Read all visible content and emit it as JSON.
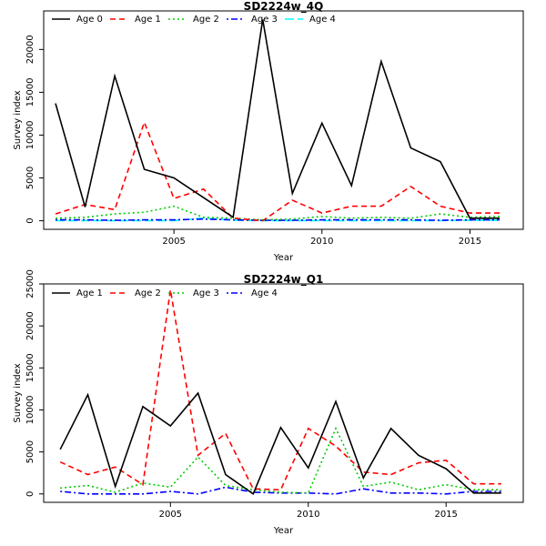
{
  "chart_data": [
    {
      "type": "line",
      "title": "SD2224w_4Q",
      "xlabel": "Year",
      "ylabel": "Survey index",
      "xlim": [
        2000.6,
        2016.8
      ],
      "ylim": [
        -1000,
        24500
      ],
      "x_ticks": [
        2005,
        2010,
        2015
      ],
      "y_ticks": [
        0,
        5000,
        10000,
        15000,
        20000
      ],
      "grid": false,
      "legend": "top",
      "x": [
        2001,
        2002,
        2003,
        2004,
        2005,
        2006,
        2007,
        2008,
        2009,
        2010,
        2011,
        2012,
        2013,
        2014,
        2015,
        2016
      ],
      "series": [
        {
          "name": "Age 0",
          "color": "#000000",
          "dash": "solid",
          "values": [
            13700,
            1600,
            16900,
            6000,
            5000,
            2700,
            400,
            23500,
            3200,
            11400,
            4100,
            18600,
            8500,
            6900,
            300,
            300
          ]
        },
        {
          "name": "Age 1",
          "color": "#ff0000",
          "dash": "dashed",
          "values": [
            800,
            1900,
            1300,
            11500,
            2600,
            3700,
            300,
            0,
            2400,
            900,
            1700,
            1700,
            4000,
            1700,
            900,
            900
          ]
        },
        {
          "name": "Age 2",
          "color": "#00cd00",
          "dash": "dotted",
          "values": [
            300,
            400,
            800,
            1000,
            1700,
            400,
            300,
            100,
            200,
            500,
            300,
            400,
            300,
            800,
            400,
            500
          ]
        },
        {
          "name": "Age 3",
          "color": "#0000ff",
          "dash": "dotdash",
          "values": [
            100,
            100,
            50,
            100,
            100,
            200,
            100,
            50,
            50,
            100,
            100,
            100,
            100,
            50,
            100,
            100
          ]
        },
        {
          "name": "Age 4",
          "color": "#00ffff",
          "dash": "longdash",
          "values": [
            20,
            20,
            20,
            20,
            20,
            300,
            50,
            20,
            20,
            20,
            20,
            20,
            20,
            20,
            50,
            50
          ]
        }
      ]
    },
    {
      "type": "line",
      "title": "SD2224w_Q1",
      "xlabel": "Year",
      "ylabel": "Survey index",
      "xlim": [
        2000.4,
        2017.8
      ],
      "ylim": [
        -1000,
        25000
      ],
      "x_ticks": [
        2005,
        2010,
        2015
      ],
      "y_ticks": [
        0,
        5000,
        10000,
        15000,
        20000,
        25000
      ],
      "grid": false,
      "legend": "top",
      "x": [
        2001,
        2002,
        2003,
        2004,
        2005,
        2006,
        2007,
        2008,
        2009,
        2010,
        2011,
        2012,
        2013,
        2014,
        2015,
        2016,
        2017
      ],
      "series": [
        {
          "name": "Age 1",
          "color": "#000000",
          "dash": "solid",
          "values": [
            5300,
            11800,
            900,
            10400,
            8100,
            12000,
            2300,
            0,
            7900,
            3100,
            11000,
            1900,
            7800,
            4600,
            3000,
            100,
            100
          ]
        },
        {
          "name": "Age 2",
          "color": "#ff0000",
          "dash": "dashed",
          "values": [
            3800,
            2300,
            3200,
            1100,
            24300,
            4600,
            7200,
            600,
            500,
            7800,
            5700,
            2600,
            2300,
            3700,
            4000,
            1200,
            1200
          ]
        },
        {
          "name": "Age 3",
          "color": "#00cd00",
          "dash": "dotted",
          "values": [
            700,
            1000,
            200,
            1300,
            800,
            4400,
            1000,
            500,
            200,
            100,
            7800,
            900,
            1400,
            500,
            1100,
            500,
            500
          ]
        },
        {
          "name": "Age 4",
          "color": "#0000ff",
          "dash": "dotdash",
          "values": [
            300,
            0,
            0,
            0,
            300,
            0,
            800,
            200,
            100,
            100,
            0,
            600,
            100,
            100,
            0,
            300,
            300
          ]
        }
      ]
    }
  ]
}
